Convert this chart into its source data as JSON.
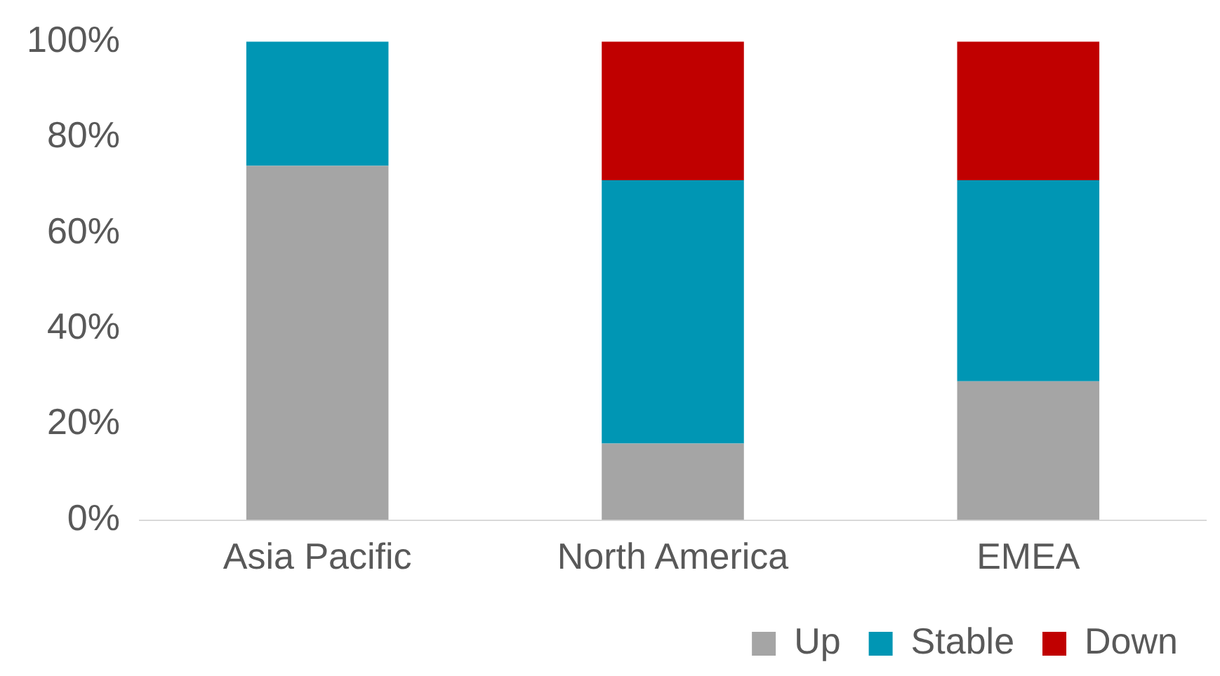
{
  "chart_data": {
    "type": "bar",
    "stacked": true,
    "categories": [
      "Asia Pacific",
      "North America",
      "EMEA"
    ],
    "series": [
      {
        "name": "Up",
        "color": "#a5a5a5",
        "values": [
          74,
          16,
          29
        ]
      },
      {
        "name": "Stable",
        "color": "#0096b4",
        "values": [
          26,
          55,
          42
        ]
      },
      {
        "name": "Down",
        "color": "#c00000",
        "values": [
          0,
          29,
          29
        ]
      }
    ],
    "ylim": [
      0,
      100
    ],
    "yticks": [
      {
        "value": 0,
        "label": "0%"
      },
      {
        "value": 20,
        "label": "20%"
      },
      {
        "value": 40,
        "label": "40%"
      },
      {
        "value": 60,
        "label": "60%"
      },
      {
        "value": 80,
        "label": "80%"
      },
      {
        "value": 100,
        "label": "100%"
      }
    ],
    "grid": false,
    "legend": "bottom"
  }
}
